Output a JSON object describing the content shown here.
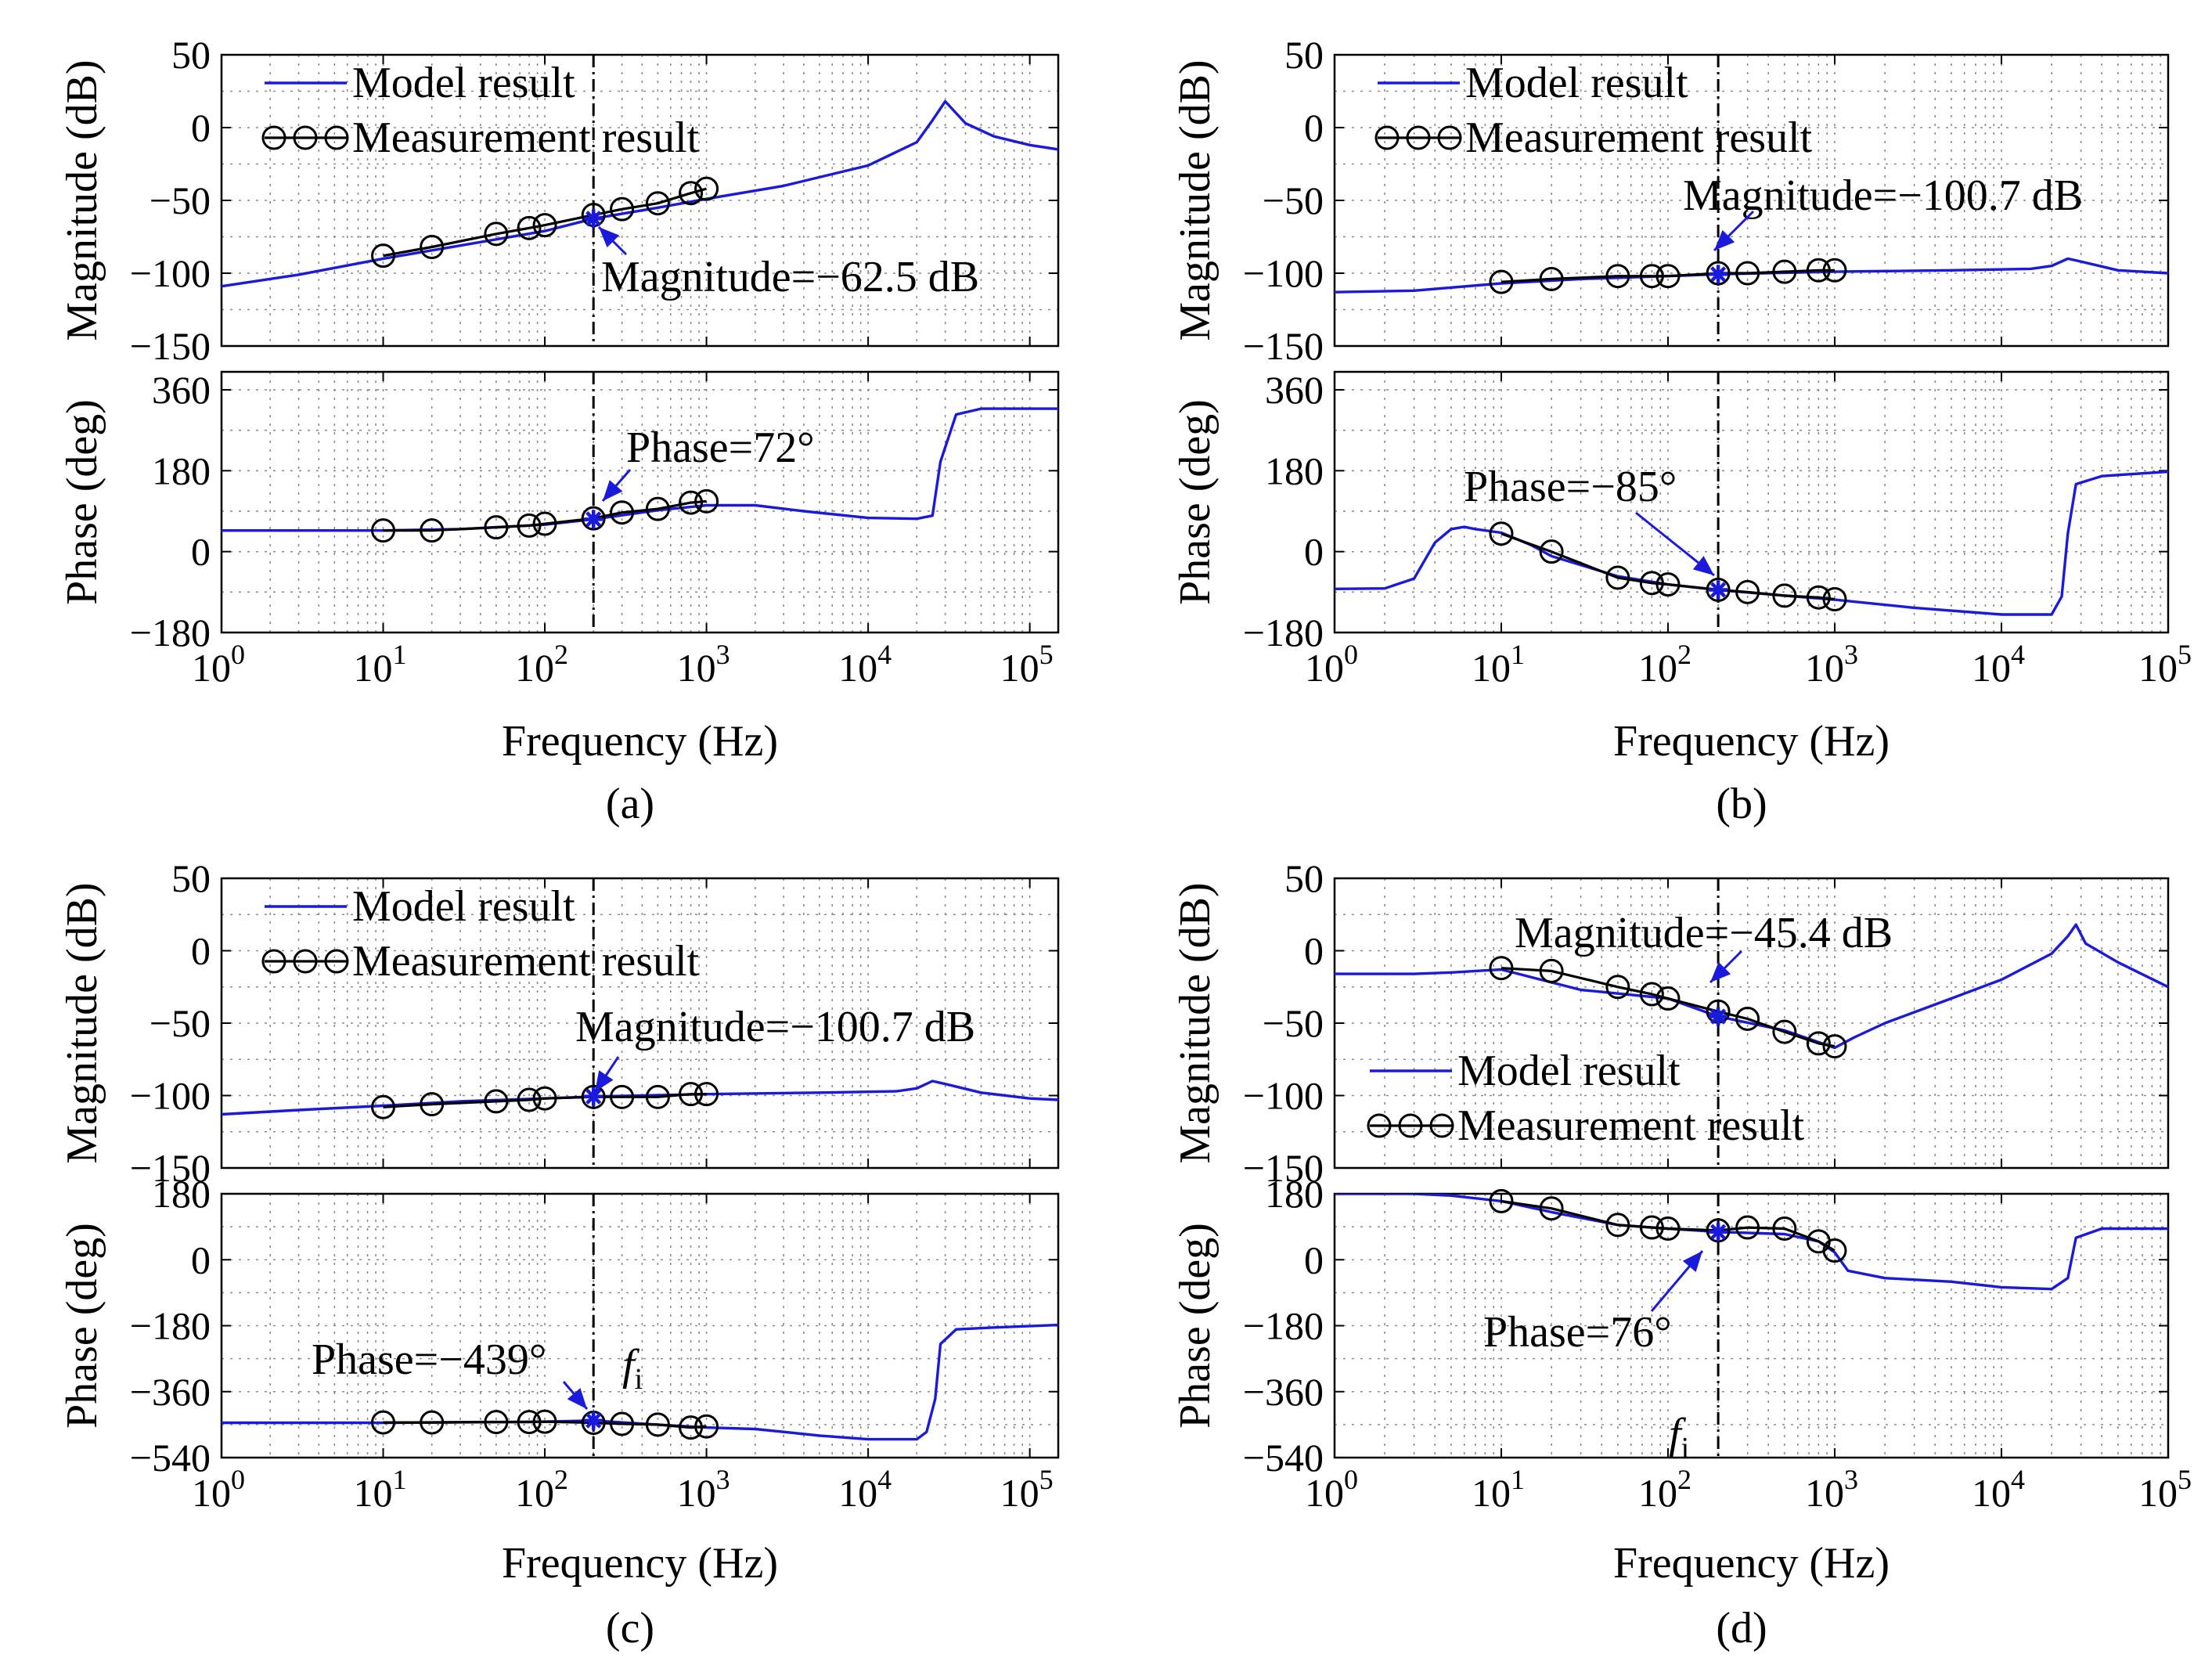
{
  "figure": {
    "x_axis_label": "Frequency  (Hz)"
  },
  "legend": {
    "model": "Model result",
    "measurement": "Measurement result"
  },
  "colors": {
    "model": "#1a1adc",
    "measurement": "#000000",
    "grid": "#8c8c8c"
  },
  "chart_data": [
    {
      "id": "a",
      "caption": "(a)",
      "type": "line",
      "x_scale": "log",
      "xlim": [
        1,
        150000
      ],
      "x_ticks": [
        {
          "v": 1,
          "m": "0"
        },
        {
          "v": 10,
          "m": "1"
        },
        {
          "v": 100,
          "m": "2"
        },
        {
          "v": 1000,
          "m": "3"
        },
        {
          "v": 10000,
          "m": "4"
        },
        {
          "v": 100000,
          "m": "5"
        }
      ],
      "highlight_frequency": 200,
      "magnitude": {
        "ylabel": "Magnitude (dB)",
        "ylim": [
          -150,
          50
        ],
        "yticks": [
          50,
          0,
          -50,
          -100,
          -150
        ],
        "ytick_labels": [
          "50",
          "0",
          "−50",
          "−100",
          "−150"
        ],
        "model": [
          [
            1,
            -109
          ],
          [
            3,
            -101
          ],
          [
            10,
            -90
          ],
          [
            30,
            -81
          ],
          [
            100,
            -71
          ],
          [
            200,
            -62.5
          ],
          [
            500,
            -55
          ],
          [
            1000,
            -49
          ],
          [
            3000,
            -40
          ],
          [
            10000,
            -26
          ],
          [
            20000,
            -10
          ],
          [
            25000,
            5
          ],
          [
            30000,
            18
          ],
          [
            40000,
            3
          ],
          [
            60000,
            -6
          ],
          [
            100000,
            -12
          ],
          [
            150000,
            -15
          ]
        ],
        "measured": [
          [
            10,
            -88
          ],
          [
            20,
            -82
          ],
          [
            50,
            -73
          ],
          [
            80,
            -69
          ],
          [
            100,
            -67
          ],
          [
            200,
            -60
          ],
          [
            300,
            -56
          ],
          [
            500,
            -52
          ],
          [
            800,
            -45
          ],
          [
            1000,
            -42
          ]
        ],
        "annotation": "Magnitude=−62.5 dB",
        "legend_position": "upper-left"
      },
      "phase": {
        "ylabel": "Phase (deg)",
        "ylim": [
          -180,
          400
        ],
        "yticks": [
          360,
          180,
          0,
          -180
        ],
        "ytick_labels": [
          "360",
          "180",
          "0",
          "−180"
        ],
        "model": [
          [
            1,
            47
          ],
          [
            10,
            47
          ],
          [
            30,
            50
          ],
          [
            100,
            60
          ],
          [
            200,
            72
          ],
          [
            500,
            92
          ],
          [
            1000,
            103
          ],
          [
            2000,
            103
          ],
          [
            4000,
            90
          ],
          [
            10000,
            75
          ],
          [
            20000,
            73
          ],
          [
            25000,
            80
          ],
          [
            28000,
            200
          ],
          [
            35000,
            305
          ],
          [
            50000,
            318
          ],
          [
            150000,
            318
          ]
        ],
        "measured": [
          [
            10,
            47
          ],
          [
            20,
            47
          ],
          [
            50,
            54
          ],
          [
            80,
            58
          ],
          [
            100,
            62
          ],
          [
            200,
            74
          ],
          [
            300,
            87
          ],
          [
            500,
            95
          ],
          [
            800,
            109
          ],
          [
            1000,
            112
          ]
        ],
        "annotation": "Phase=72°"
      }
    },
    {
      "id": "b",
      "caption": "(b)",
      "type": "line",
      "x_scale": "log",
      "xlim": [
        1,
        100000
      ],
      "x_ticks": [
        {
          "v": 1,
          "m": "0"
        },
        {
          "v": 10,
          "m": "1"
        },
        {
          "v": 100,
          "m": "2"
        },
        {
          "v": 1000,
          "m": "3"
        },
        {
          "v": 10000,
          "m": "4"
        },
        {
          "v": 100000,
          "m": "5"
        }
      ],
      "highlight_frequency": 200,
      "magnitude": {
        "ylabel": "Magnitude (dB)",
        "ylim": [
          -150,
          50
        ],
        "yticks": [
          50,
          0,
          -50,
          -100,
          -150
        ],
        "ytick_labels": [
          "50",
          "0",
          "−50",
          "−100",
          "−150"
        ],
        "model": [
          [
            1,
            -113
          ],
          [
            3,
            -112
          ],
          [
            10,
            -107
          ],
          [
            30,
            -104
          ],
          [
            100,
            -102
          ],
          [
            200,
            -100.7
          ],
          [
            1000,
            -99
          ],
          [
            5000,
            -98
          ],
          [
            15000,
            -97
          ],
          [
            20000,
            -95
          ],
          [
            25000,
            -90
          ],
          [
            30000,
            -92
          ],
          [
            50000,
            -98
          ],
          [
            100000,
            -100
          ]
        ],
        "measured": [
          [
            10,
            -106
          ],
          [
            20,
            -104
          ],
          [
            50,
            -102
          ],
          [
            80,
            -102
          ],
          [
            100,
            -102
          ],
          [
            200,
            -100
          ],
          [
            300,
            -100
          ],
          [
            500,
            -99
          ],
          [
            800,
            -98
          ],
          [
            1000,
            -98
          ]
        ],
        "annotation": "Magnitude=−100.7 dB",
        "legend_position": "upper-left"
      },
      "phase": {
        "ylabel": "Phase (deg)",
        "ylim": [
          -180,
          400
        ],
        "yticks": [
          360,
          180,
          0,
          -180
        ],
        "ytick_labels": [
          "360",
          "180",
          "0",
          "−180"
        ],
        "model": [
          [
            1,
            -83
          ],
          [
            2,
            -82
          ],
          [
            3,
            -60
          ],
          [
            4,
            20
          ],
          [
            5,
            50
          ],
          [
            6,
            55
          ],
          [
            7,
            50
          ],
          [
            10,
            42
          ],
          [
            15,
            15
          ],
          [
            20,
            -10
          ],
          [
            50,
            -55
          ],
          [
            100,
            -73
          ],
          [
            200,
            -85
          ],
          [
            500,
            -98
          ],
          [
            1000,
            -107
          ],
          [
            3000,
            -125
          ],
          [
            10000,
            -140
          ],
          [
            20000,
            -140
          ],
          [
            23000,
            -100
          ],
          [
            25000,
            40
          ],
          [
            28000,
            150
          ],
          [
            40000,
            168
          ],
          [
            100000,
            178
          ]
        ],
        "measured": [
          [
            10,
            40
          ],
          [
            20,
            0
          ],
          [
            50,
            -58
          ],
          [
            80,
            -70
          ],
          [
            100,
            -73
          ],
          [
            200,
            -85
          ],
          [
            300,
            -90
          ],
          [
            500,
            -98
          ],
          [
            800,
            -102
          ],
          [
            1000,
            -106
          ]
        ],
        "annotation": "Phase=−85°"
      }
    },
    {
      "id": "c",
      "caption": "(c)",
      "type": "line",
      "x_scale": "log",
      "xlim": [
        1,
        150000
      ],
      "x_ticks": [
        {
          "v": 1,
          "m": "0"
        },
        {
          "v": 10,
          "m": "1"
        },
        {
          "v": 100,
          "m": "2"
        },
        {
          "v": 1000,
          "m": "3"
        },
        {
          "v": 10000,
          "m": "4"
        },
        {
          "v": 100000,
          "m": "5"
        }
      ],
      "highlight_frequency": 200,
      "magnitude": {
        "ylabel": "Magnitude (dB)",
        "ylim": [
          -150,
          50
        ],
        "yticks": [
          50,
          0,
          -50,
          -100,
          -150
        ],
        "ytick_labels": [
          "50",
          "0",
          "−50",
          "−100",
          "−150"
        ],
        "model": [
          [
            1,
            -113
          ],
          [
            3,
            -110
          ],
          [
            10,
            -107
          ],
          [
            30,
            -104
          ],
          [
            100,
            -102
          ],
          [
            200,
            -100.7
          ],
          [
            1000,
            -99
          ],
          [
            5000,
            -98
          ],
          [
            15000,
            -97
          ],
          [
            20000,
            -95
          ],
          [
            25000,
            -90
          ],
          [
            30000,
            -92
          ],
          [
            50000,
            -98
          ],
          [
            100000,
            -102
          ],
          [
            150000,
            -103
          ]
        ],
        "measured": [
          [
            10,
            -108
          ],
          [
            20,
            -106
          ],
          [
            50,
            -104
          ],
          [
            80,
            -103
          ],
          [
            100,
            -102
          ],
          [
            200,
            -101
          ],
          [
            300,
            -101
          ],
          [
            500,
            -101
          ],
          [
            800,
            -99
          ],
          [
            1000,
            -99
          ]
        ],
        "annotation": "Magnitude=−100.7 dB",
        "legend_position": "upper-left"
      },
      "phase": {
        "ylabel": "Phase (deg)",
        "ylim": [
          -540,
          180
        ],
        "yticks": [
          180,
          0,
          -180,
          -360,
          -540
        ],
        "ytick_labels": [
          "180",
          "0",
          "−180",
          "−360",
          "−540"
        ],
        "model": [
          [
            1,
            -445
          ],
          [
            10,
            -445
          ],
          [
            100,
            -442
          ],
          [
            200,
            -439
          ],
          [
            500,
            -450
          ],
          [
            1000,
            -458
          ],
          [
            2000,
            -462
          ],
          [
            5000,
            -480
          ],
          [
            10000,
            -490
          ],
          [
            20000,
            -490
          ],
          [
            23000,
            -470
          ],
          [
            26000,
            -380
          ],
          [
            28000,
            -230
          ],
          [
            35000,
            -190
          ],
          [
            60000,
            -185
          ],
          [
            150000,
            -178
          ]
        ],
        "measured": [
          [
            10,
            -444
          ],
          [
            20,
            -444
          ],
          [
            50,
            -443
          ],
          [
            80,
            -443
          ],
          [
            100,
            -442
          ],
          [
            200,
            -445
          ],
          [
            300,
            -448
          ],
          [
            500,
            -450
          ],
          [
            800,
            -458
          ],
          [
            1000,
            -455
          ]
        ],
        "annotation": "Phase=−439°",
        "f_label": "f",
        "f_subscript": "i"
      }
    },
    {
      "id": "d",
      "caption": "(d)",
      "type": "line",
      "x_scale": "log",
      "xlim": [
        1,
        100000
      ],
      "x_ticks": [
        {
          "v": 1,
          "m": "0"
        },
        {
          "v": 10,
          "m": "1"
        },
        {
          "v": 100,
          "m": "2"
        },
        {
          "v": 1000,
          "m": "3"
        },
        {
          "v": 10000,
          "m": "4"
        },
        {
          "v": 100000,
          "m": "5"
        }
      ],
      "highlight_frequency": 200,
      "magnitude": {
        "ylabel": "Magnitude (dB)",
        "ylim": [
          -150,
          50
        ],
        "yticks": [
          50,
          0,
          -50,
          -100,
          -150
        ],
        "ytick_labels": [
          "50",
          "0",
          "−50",
          "−100",
          "−150"
        ],
        "model": [
          [
            1,
            -16
          ],
          [
            3,
            -16
          ],
          [
            5,
            -15
          ],
          [
            10,
            -13
          ],
          [
            30,
            -27
          ],
          [
            100,
            -33
          ],
          [
            200,
            -45.4
          ],
          [
            500,
            -55
          ],
          [
            1000,
            -67
          ],
          [
            1300,
            -60
          ],
          [
            2000,
            -50
          ],
          [
            5000,
            -33
          ],
          [
            10000,
            -20
          ],
          [
            20000,
            -2
          ],
          [
            25000,
            10
          ],
          [
            28000,
            18
          ],
          [
            32000,
            5
          ],
          [
            50000,
            -8
          ],
          [
            100000,
            -25
          ]
        ],
        "measured": [
          [
            10,
            -12
          ],
          [
            20,
            -14
          ],
          [
            50,
            -25
          ],
          [
            80,
            -30
          ],
          [
            100,
            -33
          ],
          [
            200,
            -42
          ],
          [
            300,
            -47
          ],
          [
            500,
            -56
          ],
          [
            800,
            -64
          ],
          [
            1000,
            -66
          ]
        ],
        "annotation": "Magnitude=−45.4 dB",
        "legend_position": "lower-left"
      },
      "phase": {
        "ylabel": "Phase (deg)",
        "ylim": [
          -540,
          180
        ],
        "yticks": [
          180,
          0,
          -180,
          -360,
          -540
        ],
        "ytick_labels": [
          "180",
          "0",
          "−180",
          "−360",
          "−540"
        ],
        "model": [
          [
            1,
            180
          ],
          [
            3,
            180
          ],
          [
            5,
            175
          ],
          [
            10,
            160
          ],
          [
            20,
            130
          ],
          [
            50,
            95
          ],
          [
            100,
            85
          ],
          [
            200,
            76
          ],
          [
            500,
            70
          ],
          [
            800,
            50
          ],
          [
            1000,
            20
          ],
          [
            1200,
            -30
          ],
          [
            2000,
            -50
          ],
          [
            5000,
            -60
          ],
          [
            10000,
            -75
          ],
          [
            20000,
            -80
          ],
          [
            25000,
            -50
          ],
          [
            28000,
            60
          ],
          [
            40000,
            85
          ],
          [
            100000,
            85
          ]
        ],
        "measured": [
          [
            10,
            160
          ],
          [
            20,
            140
          ],
          [
            50,
            95
          ],
          [
            80,
            88
          ],
          [
            100,
            85
          ],
          [
            200,
            80
          ],
          [
            300,
            88
          ],
          [
            500,
            85
          ],
          [
            800,
            50
          ],
          [
            1000,
            25
          ]
        ],
        "annotation": "Phase=76°",
        "f_label": "f",
        "f_subscript": "i"
      }
    }
  ]
}
